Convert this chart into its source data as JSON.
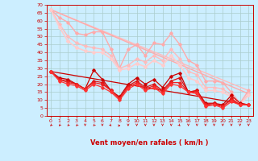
{
  "xlabel": "Vent moyen/en rafales ( km/h )",
  "bg_color": "#cceeff",
  "xlim": [
    -0.5,
    23.5
  ],
  "ylim": [
    0,
    70
  ],
  "yticks": [
    0,
    5,
    10,
    15,
    20,
    25,
    30,
    35,
    40,
    45,
    50,
    55,
    60,
    65,
    70
  ],
  "xticks": [
    0,
    1,
    2,
    3,
    4,
    5,
    6,
    7,
    8,
    9,
    10,
    11,
    12,
    13,
    14,
    15,
    16,
    17,
    18,
    19,
    20,
    21,
    22,
    23
  ],
  "series": [
    {
      "x": [
        0,
        1,
        2,
        3,
        4,
        5,
        6,
        7,
        8,
        9,
        10,
        11,
        12,
        13,
        14,
        15,
        16,
        17,
        18,
        19,
        20,
        21,
        22,
        23
      ],
      "y": [
        67,
        62,
        59,
        52,
        51,
        53,
        53,
        42,
        30,
        42,
        45,
        38,
        46,
        45,
        52,
        45,
        35,
        32,
        22,
        22,
        21,
        15,
        8,
        16
      ],
      "color": "#ffaaaa",
      "lw": 1.0,
      "marker": "D",
      "ms": 1.8,
      "zorder": 3
    },
    {
      "x": [
        0,
        1,
        2,
        3,
        4,
        5,
        6,
        7,
        8,
        9,
        10,
        11,
        12,
        13,
        14,
        15,
        16,
        17,
        18,
        19,
        20,
        21,
        22,
        23
      ],
      "y": [
        67,
        58,
        50,
        46,
        44,
        43,
        42,
        38,
        30,
        32,
        36,
        34,
        38,
        35,
        42,
        36,
        28,
        26,
        18,
        18,
        17,
        13,
        7,
        14
      ],
      "color": "#ffbbbb",
      "lw": 1.0,
      "marker": "D",
      "ms": 1.8,
      "zorder": 3
    },
    {
      "x": [
        0,
        1,
        2,
        3,
        4,
        5,
        6,
        7,
        8,
        9,
        10,
        11,
        12,
        13,
        14,
        15,
        16,
        17,
        18,
        19,
        20,
        21,
        22,
        23
      ],
      "y": [
        67,
        56,
        47,
        43,
        41,
        40,
        40,
        36,
        29,
        30,
        33,
        31,
        35,
        32,
        38,
        32,
        24,
        22,
        16,
        16,
        15,
        12,
        7,
        13
      ],
      "color": "#ffcccc",
      "lw": 1.2,
      "marker": "D",
      "ms": 2.0,
      "zorder": 3
    },
    {
      "x": [
        0,
        23
      ],
      "y": [
        67,
        16
      ],
      "color": "#ffbbbb",
      "lw": 1.0,
      "marker": null,
      "ms": 0,
      "zorder": 2
    },
    {
      "x": [
        0,
        23
      ],
      "y": [
        67,
        14
      ],
      "color": "#ffaaaa",
      "lw": 1.0,
      "marker": null,
      "ms": 0,
      "zorder": 2
    },
    {
      "x": [
        0,
        1,
        2,
        3,
        4,
        5,
        6,
        7,
        8,
        9,
        10,
        11,
        12,
        13,
        14,
        15,
        16,
        17,
        18,
        19,
        20,
        21,
        22,
        23
      ],
      "y": [
        28,
        24,
        23,
        20,
        17,
        29,
        23,
        16,
        12,
        20,
        24,
        20,
        23,
        18,
        25,
        27,
        15,
        16,
        8,
        8,
        7,
        13,
        8,
        7
      ],
      "color": "#cc0000",
      "lw": 0.9,
      "marker": "D",
      "ms": 1.8,
      "zorder": 4
    },
    {
      "x": [
        0,
        1,
        2,
        3,
        4,
        5,
        6,
        7,
        8,
        9,
        10,
        11,
        12,
        13,
        14,
        15,
        16,
        17,
        18,
        19,
        20,
        21,
        22,
        23
      ],
      "y": [
        28,
        23,
        22,
        20,
        17,
        22,
        21,
        16,
        11,
        19,
        22,
        18,
        20,
        16,
        22,
        24,
        15,
        16,
        7,
        8,
        6,
        11,
        7,
        7
      ],
      "color": "#dd1111",
      "lw": 0.9,
      "marker": "D",
      "ms": 1.8,
      "zorder": 4
    },
    {
      "x": [
        0,
        1,
        2,
        3,
        4,
        5,
        6,
        7,
        8,
        9,
        10,
        11,
        12,
        13,
        14,
        15,
        16,
        17,
        18,
        19,
        20,
        21,
        22,
        23
      ],
      "y": [
        28,
        23,
        21,
        20,
        17,
        21,
        20,
        16,
        11,
        18,
        21,
        17,
        19,
        15,
        21,
        21,
        15,
        15,
        7,
        7,
        6,
        10,
        7,
        7
      ],
      "color": "#ee2222",
      "lw": 0.9,
      "marker": "D",
      "ms": 1.8,
      "zorder": 4
    },
    {
      "x": [
        0,
        1,
        2,
        3,
        4,
        5,
        6,
        7,
        8,
        9,
        10,
        11,
        12,
        13,
        14,
        15,
        16,
        17,
        18,
        19,
        20,
        21,
        22,
        23
      ],
      "y": [
        28,
        22,
        20,
        19,
        16,
        20,
        18,
        15,
        10,
        17,
        20,
        16,
        18,
        14,
        20,
        19,
        15,
        14,
        6,
        7,
        5,
        9,
        7,
        7
      ],
      "color": "#ff3333",
      "lw": 0.9,
      "marker": "D",
      "ms": 1.8,
      "zorder": 4
    },
    {
      "x": [
        0,
        23
      ],
      "y": [
        28,
        7
      ],
      "color": "#cc0000",
      "lw": 0.9,
      "marker": null,
      "ms": 0,
      "zorder": 2
    }
  ],
  "wind_arrows_x": [
    0,
    1,
    2,
    3,
    4,
    5,
    6,
    7,
    8,
    9,
    10,
    11,
    12,
    13,
    14,
    15,
    16,
    17,
    18,
    19,
    20,
    21,
    22,
    23
  ],
  "wind_arrows_angle": [
    225,
    225,
    225,
    225,
    270,
    225,
    270,
    315,
    0,
    270,
    270,
    270,
    270,
    270,
    270,
    315,
    270,
    270,
    270,
    270,
    270,
    270,
    270,
    270
  ]
}
